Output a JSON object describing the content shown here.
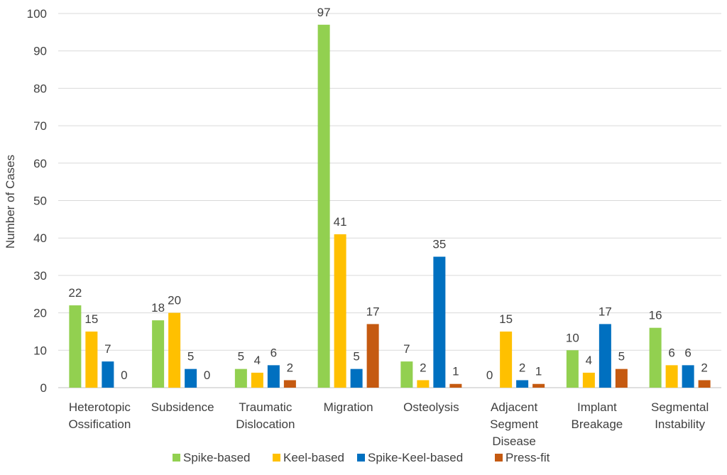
{
  "chart_data": {
    "type": "bar",
    "title": "",
    "xlabel": "",
    "ylabel": "Number of Cases",
    "ylim": [
      0,
      100
    ],
    "yticks": [
      0,
      10,
      20,
      30,
      40,
      50,
      60,
      70,
      80,
      90,
      100
    ],
    "grid": true,
    "legend_position": "bottom",
    "categories": [
      [
        "Heterotopic",
        "Ossification"
      ],
      [
        "Subsidence"
      ],
      [
        "Traumatic",
        "Dislocation"
      ],
      [
        "Migration"
      ],
      [
        "Osteolysis"
      ],
      [
        "Adjacent",
        "Segment",
        "Disease"
      ],
      [
        "Implant",
        "Breakage"
      ],
      [
        "Segmental",
        "Instability"
      ]
    ],
    "series": [
      {
        "name": "Spike-based",
        "color": "#92d050",
        "values": [
          22,
          18,
          5,
          97,
          7,
          0,
          10,
          16
        ]
      },
      {
        "name": "Keel-based",
        "color": "#ffc000",
        "values": [
          15,
          20,
          4,
          41,
          2,
          15,
          4,
          6
        ]
      },
      {
        "name": "Spike-Keel-based",
        "color": "#0070c0",
        "values": [
          7,
          5,
          6,
          5,
          35,
          2,
          17,
          6
        ]
      },
      {
        "name": "Press-fit",
        "color": "#c55a11",
        "values": [
          0,
          0,
          2,
          17,
          1,
          1,
          5,
          2
        ]
      }
    ]
  }
}
